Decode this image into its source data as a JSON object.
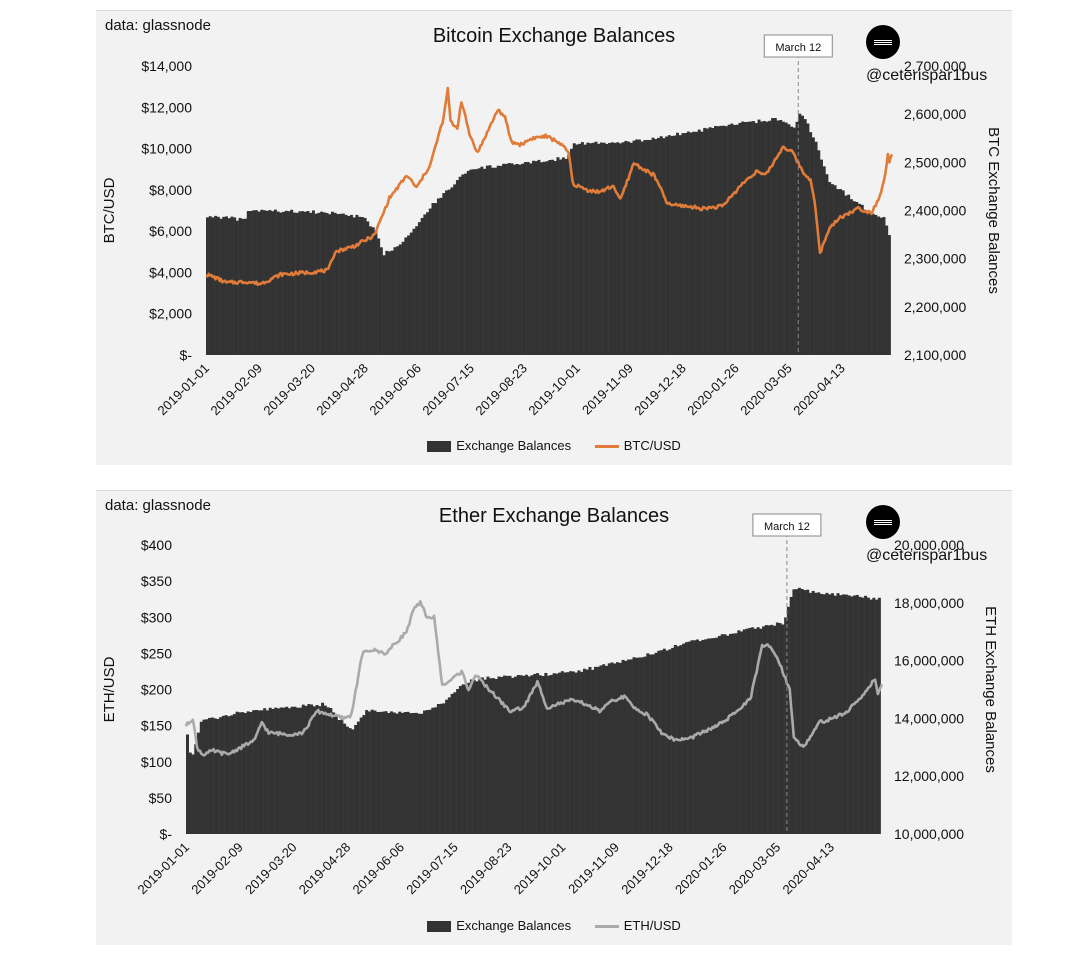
{
  "chart_data": [
    {
      "id": "btc",
      "type": "bar+line",
      "data_source": "data: glassnode",
      "title": "Bitcoin Exchange Balances",
      "handle": "@ceterispar1bus",
      "ylabel_left": "BTC/USD",
      "ylabel_right": "BTC Exchange Balances",
      "yticks_left": [
        "$-",
        "$2,000",
        "$4,000",
        "$6,000",
        "$8,000",
        "$10,000",
        "$12,000",
        "$14,000"
      ],
      "ylim_left": [
        0,
        14000
      ],
      "yticks_right": [
        "2,100,000",
        "2,200,000",
        "2,300,000",
        "2,400,000",
        "2,500,000",
        "2,600,000",
        "2,700,000"
      ],
      "ylim_right": [
        2100000,
        2700000
      ],
      "x_tick_labels": [
        "2019-01-01",
        "2019-02-09",
        "2019-03-20",
        "2019-04-28",
        "2019-06-06",
        "2019-07-15",
        "2019-08-23",
        "2019-10-01",
        "2019-11-09",
        "2019-12-18",
        "2020-01-26",
        "2020-03-05",
        "2020-04-13"
      ],
      "x_range_days": [
        0,
        505
      ],
      "annotation": {
        "label": "March 12",
        "day": 436
      },
      "line_color": "#e07b39",
      "bar_color": "#333333",
      "legend": {
        "bar": "Exchange Balances",
        "line": "BTC/USD"
      },
      "balances_keypoints": [
        [
          0,
          2388000
        ],
        [
          12,
          2386000
        ],
        [
          28,
          2380000
        ],
        [
          30,
          2400000
        ],
        [
          70,
          2398000
        ],
        [
          100,
          2393000
        ],
        [
          115,
          2385000
        ],
        [
          124,
          2355000
        ],
        [
          130,
          2310000
        ],
        [
          140,
          2327000
        ],
        [
          150,
          2355000
        ],
        [
          165,
          2410000
        ],
        [
          180,
          2450000
        ],
        [
          190,
          2480000
        ],
        [
          205,
          2490000
        ],
        [
          222,
          2495000
        ],
        [
          240,
          2500000
        ],
        [
          265,
          2510000
        ],
        [
          270,
          2540000
        ],
        [
          305,
          2540000
        ],
        [
          330,
          2550000
        ],
        [
          360,
          2565000
        ],
        [
          390,
          2580000
        ],
        [
          420,
          2590000
        ],
        [
          432,
          2570000
        ],
        [
          436,
          2600000
        ],
        [
          440,
          2590000
        ],
        [
          448,
          2540000
        ],
        [
          458,
          2460000
        ],
        [
          472,
          2430000
        ],
        [
          486,
          2400000
        ],
        [
          498,
          2385000
        ],
        [
          500,
          2370000
        ],
        [
          505,
          2323000
        ]
      ],
      "price_keypoints": [
        [
          0,
          3900
        ],
        [
          5,
          3800
        ],
        [
          15,
          3500
        ],
        [
          30,
          3550
        ],
        [
          40,
          3450
        ],
        [
          55,
          3900
        ],
        [
          75,
          4000
        ],
        [
          90,
          4100
        ],
        [
          95,
          5000
        ],
        [
          110,
          5300
        ],
        [
          124,
          5800
        ],
        [
          135,
          7600
        ],
        [
          148,
          8700
        ],
        [
          155,
          8100
        ],
        [
          165,
          9200
        ],
        [
          175,
          11500
        ],
        [
          178,
          12900
        ],
        [
          180,
          11300
        ],
        [
          185,
          11000
        ],
        [
          188,
          12300
        ],
        [
          194,
          10700
        ],
        [
          200,
          9800
        ],
        [
          205,
          10500
        ],
        [
          215,
          11900
        ],
        [
          220,
          11500
        ],
        [
          225,
          10300
        ],
        [
          232,
          10200
        ],
        [
          240,
          10500
        ],
        [
          250,
          10600
        ],
        [
          260,
          10300
        ],
        [
          267,
          9800
        ],
        [
          270,
          8300
        ],
        [
          280,
          8000
        ],
        [
          290,
          7900
        ],
        [
          300,
          8200
        ],
        [
          305,
          7500
        ],
        [
          315,
          9300
        ],
        [
          322,
          9000
        ],
        [
          330,
          8700
        ],
        [
          340,
          7300
        ],
        [
          355,
          7200
        ],
        [
          365,
          7100
        ],
        [
          380,
          7200
        ],
        [
          395,
          8300
        ],
        [
          405,
          8900
        ],
        [
          412,
          8700
        ],
        [
          425,
          10100
        ],
        [
          432,
          9800
        ],
        [
          440,
          8800
        ],
        [
          445,
          8500
        ],
        [
          448,
          7500
        ],
        [
          452,
          4900
        ],
        [
          458,
          6000
        ],
        [
          465,
          6600
        ],
        [
          480,
          7100
        ],
        [
          490,
          6900
        ],
        [
          496,
          7700
        ],
        [
          500,
          8700
        ],
        [
          502,
          9800
        ],
        [
          503,
          9300
        ],
        [
          505,
          9700
        ]
      ]
    },
    {
      "id": "eth",
      "type": "bar+line",
      "data_source": "data: glassnode",
      "title": "Ether Exchange Balances",
      "handle": "@ceterispar1bus",
      "ylabel_left": "ETH/USD",
      "ylabel_right": "ETH Exchange Balances",
      "yticks_left": [
        "$-",
        "$50",
        "$100",
        "$150",
        "$200",
        "$250",
        "$300",
        "$350",
        "$400"
      ],
      "ylim_left": [
        0,
        400
      ],
      "yticks_right": [
        "10,000,000",
        "12,000,000",
        "14,000,000",
        "16,000,000",
        "18,000,000",
        "20,000,000"
      ],
      "ylim_right": [
        10000000,
        20000000
      ],
      "x_tick_labels": [
        "2019-01-01",
        "2019-02-09",
        "2019-03-20",
        "2019-04-28",
        "2019-06-06",
        "2019-07-15",
        "2019-08-23",
        "2019-10-01",
        "2019-11-09",
        "2019-12-18",
        "2020-01-26",
        "2020-03-05",
        "2020-04-13"
      ],
      "x_range_days": [
        0,
        505
      ],
      "annotation": {
        "label": "March 12",
        "day": 436
      },
      "line_color": "#aaaaaa",
      "bar_color": "#333333",
      "legend": {
        "bar": "Exchange Balances",
        "line": "ETH/USD"
      },
      "balances_keypoints": [
        [
          0,
          13500000
        ],
        [
          3,
          12500000
        ],
        [
          10,
          13900000
        ],
        [
          20,
          14000000
        ],
        [
          35,
          14200000
        ],
        [
          55,
          14300000
        ],
        [
          80,
          14400000
        ],
        [
          100,
          14500000
        ],
        [
          110,
          14000000
        ],
        [
          120,
          13600000
        ],
        [
          130,
          14300000
        ],
        [
          150,
          14200000
        ],
        [
          170,
          14200000
        ],
        [
          185,
          14500000
        ],
        [
          192,
          14900000
        ],
        [
          205,
          15300000
        ],
        [
          220,
          15400000
        ],
        [
          250,
          15500000
        ],
        [
          280,
          15600000
        ],
        [
          310,
          15900000
        ],
        [
          340,
          16300000
        ],
        [
          370,
          16700000
        ],
        [
          400,
          17000000
        ],
        [
          420,
          17200000
        ],
        [
          432,
          17300000
        ],
        [
          436,
          17800000
        ],
        [
          440,
          18500000
        ],
        [
          450,
          18400000
        ],
        [
          470,
          18300000
        ],
        [
          490,
          18200000
        ],
        [
          505,
          18100000
        ]
      ],
      "price_keypoints": [
        [
          0,
          150
        ],
        [
          5,
          160
        ],
        [
          8,
          120
        ],
        [
          12,
          110
        ],
        [
          20,
          115
        ],
        [
          30,
          110
        ],
        [
          40,
          120
        ],
        [
          50,
          130
        ],
        [
          55,
          155
        ],
        [
          60,
          140
        ],
        [
          75,
          138
        ],
        [
          85,
          140
        ],
        [
          95,
          170
        ],
        [
          105,
          165
        ],
        [
          115,
          160
        ],
        [
          120,
          165
        ],
        [
          128,
          250
        ],
        [
          135,
          255
        ],
        [
          145,
          250
        ],
        [
          150,
          260
        ],
        [
          160,
          280
        ],
        [
          165,
          310
        ],
        [
          170,
          320
        ],
        [
          175,
          300
        ],
        [
          180,
          300
        ],
        [
          186,
          205
        ],
        [
          190,
          210
        ],
        [
          200,
          225
        ],
        [
          205,
          200
        ],
        [
          210,
          220
        ],
        [
          225,
          190
        ],
        [
          235,
          170
        ],
        [
          245,
          175
        ],
        [
          255,
          210
        ],
        [
          262,
          175
        ],
        [
          270,
          180
        ],
        [
          280,
          185
        ],
        [
          290,
          180
        ],
        [
          300,
          170
        ],
        [
          310,
          185
        ],
        [
          318,
          190
        ],
        [
          325,
          175
        ],
        [
          335,
          165
        ],
        [
          345,
          140
        ],
        [
          355,
          130
        ],
        [
          365,
          132
        ],
        [
          380,
          145
        ],
        [
          390,
          155
        ],
        [
          400,
          170
        ],
        [
          410,
          190
        ],
        [
          418,
          260
        ],
        [
          424,
          260
        ],
        [
          430,
          240
        ],
        [
          432,
          230
        ],
        [
          438,
          200
        ],
        [
          441,
          135
        ],
        [
          448,
          120
        ],
        [
          460,
          155
        ],
        [
          470,
          160
        ],
        [
          480,
          170
        ],
        [
          490,
          190
        ],
        [
          500,
          215
        ],
        [
          502,
          195
        ],
        [
          505,
          205
        ]
      ]
    }
  ]
}
